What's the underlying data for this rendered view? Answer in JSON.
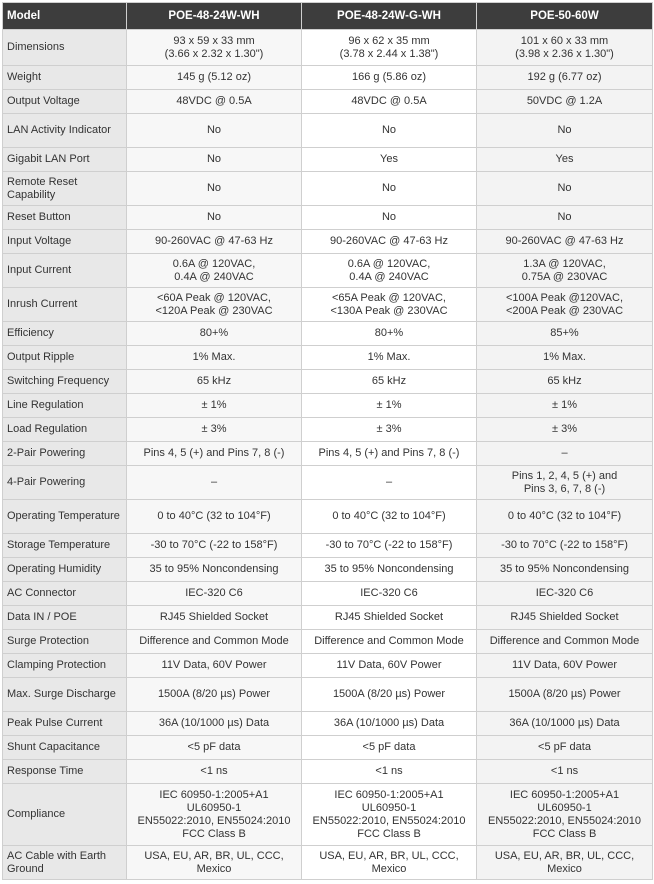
{
  "header": {
    "model_label": "Model",
    "models": [
      "POE-48-24W-WH",
      "POE-48-24W-G-WH",
      "POE-50-60W"
    ]
  },
  "rows": [
    {
      "label": "Dimensions",
      "values": [
        "93 x 59 x 33 mm\n(3.66 x 2.32 x 1.30\")",
        "96 x 62 x 35 mm\n(3.78 x 2.44 x 1.38\")",
        "101 x 60 x 33 mm\n(3.98 x 2.36 x 1.30\")"
      ]
    },
    {
      "label": "Weight",
      "values": [
        "145 g (5.12 oz)",
        "166 g (5.86 oz)",
        "192 g (6.77 oz)"
      ]
    },
    {
      "label": "Output Voltage",
      "values": [
        "48VDC @ 0.5A",
        "48VDC @ 0.5A",
        "50VDC @ 1.2A"
      ]
    },
    {
      "label": "LAN Activity Indicator",
      "values": [
        "No",
        "No",
        "No"
      ]
    },
    {
      "label": "Gigabit LAN Port",
      "values": [
        "No",
        "Yes",
        "Yes"
      ]
    },
    {
      "label": "Remote Reset Capability",
      "values": [
        "No",
        "No",
        "No"
      ]
    },
    {
      "label": "Reset Button",
      "values": [
        "No",
        "No",
        "No"
      ]
    },
    {
      "label": "Input Voltage",
      "values": [
        "90-260VAC @ 47-63 Hz",
        "90-260VAC @ 47-63 Hz",
        "90-260VAC @ 47-63 Hz"
      ]
    },
    {
      "label": "Input Current",
      "values": [
        "0.6A @ 120VAC,\n0.4A @ 240VAC",
        "0.6A @ 120VAC,\n0.4A @ 240VAC",
        "1.3A @ 120VAC,\n0.75A @ 230VAC"
      ]
    },
    {
      "label": "Inrush Current",
      "values": [
        "<60A Peak @ 120VAC,\n<120A Peak @ 230VAC",
        "<65A Peak @ 120VAC,\n<130A Peak @ 230VAC",
        "<100A Peak @120VAC,\n<200A Peak @ 230VAC"
      ]
    },
    {
      "label": "Efficiency",
      "values": [
        "80+%",
        "80+%",
        "85+%"
      ]
    },
    {
      "label": "Output Ripple",
      "values": [
        "1% Max.",
        "1% Max.",
        "1% Max."
      ]
    },
    {
      "label": "Switching Frequency",
      "values": [
        "65 kHz",
        "65 kHz",
        "65 kHz"
      ]
    },
    {
      "label": "Line Regulation",
      "values": [
        "± 1%",
        "± 1%",
        "± 1%"
      ]
    },
    {
      "label": "Load Regulation",
      "values": [
        "± 3%",
        "± 3%",
        "± 3%"
      ]
    },
    {
      "label": "2-Pair Powering",
      "values": [
        "Pins 4, 5 (+) and Pins 7, 8 (-)",
        "Pins 4, 5 (+) and Pins 7, 8 (-)",
        "–"
      ]
    },
    {
      "label": "4-Pair Powering",
      "values": [
        "–",
        "–",
        "Pins 1, 2, 4, 5 (+) and\nPins 3, 6, 7, 8 (-)"
      ]
    },
    {
      "label": "Operating Temperature",
      "values": [
        "0 to 40°C (32 to 104°F)",
        "0 to 40°C (32 to 104°F)",
        "0 to 40°C (32 to 104°F)"
      ]
    },
    {
      "label": "Storage Temperature",
      "values": [
        "-30 to 70°C (-22 to 158°F)",
        "-30 to 70°C (-22 to 158°F)",
        "-30 to 70°C (-22 to 158°F)"
      ]
    },
    {
      "label": "Operating Humidity",
      "values": [
        "35 to 95% Noncondensing",
        "35 to 95% Noncondensing",
        "35 to 95% Noncondensing"
      ]
    },
    {
      "label": "AC Connector",
      "values": [
        "IEC-320 C6",
        "IEC-320 C6",
        "IEC-320 C6"
      ]
    },
    {
      "label": "Data IN / POE",
      "values": [
        "RJ45 Shielded Socket",
        "RJ45 Shielded Socket",
        "RJ45 Shielded Socket"
      ]
    },
    {
      "label": "Surge Protection",
      "values": [
        "Difference and Common Mode",
        "Difference and Common Mode",
        "Difference and Common Mode"
      ]
    },
    {
      "label": "Clamping Protection",
      "values": [
        "11V Data, 60V Power",
        "11V Data, 60V Power",
        "11V Data, 60V Power"
      ]
    },
    {
      "label": "Max. Surge Discharge",
      "values": [
        "1500A (8/20 µs) Power",
        "1500A (8/20 µs) Power",
        "1500A (8/20 µs) Power"
      ]
    },
    {
      "label": "Peak Pulse Current",
      "values": [
        "36A (10/1000 µs) Data",
        "36A (10/1000 µs) Data",
        "36A (10/1000 µs) Data"
      ]
    },
    {
      "label": "Shunt Capacitance",
      "values": [
        "<5 pF data",
        "<5 pF data",
        "<5 pF data"
      ]
    },
    {
      "label": "Response Time",
      "values": [
        "<1 ns",
        "<1 ns",
        "<1 ns"
      ]
    },
    {
      "label": "Compliance",
      "values": [
        "IEC 60950-1:2005+A1\nUL60950-1\nEN55022:2010, EN55024:2010\nFCC Class B",
        "IEC 60950-1:2005+A1\nUL60950-1\nEN55022:2010, EN55024:2010\nFCC Class B",
        "IEC 60950-1:2005+A1\nUL60950-1\nEN55022:2010, EN55024:2010\nFCC Class B"
      ]
    },
    {
      "label": "AC Cable with Earth Ground",
      "values": [
        "USA, EU, AR, BR, UL, CCC,\nMexico",
        "USA, EU, AR, BR, UL, CCC,\nMexico",
        "USA, EU, AR, BR, UL, CCC,\nMexico"
      ]
    }
  ]
}
